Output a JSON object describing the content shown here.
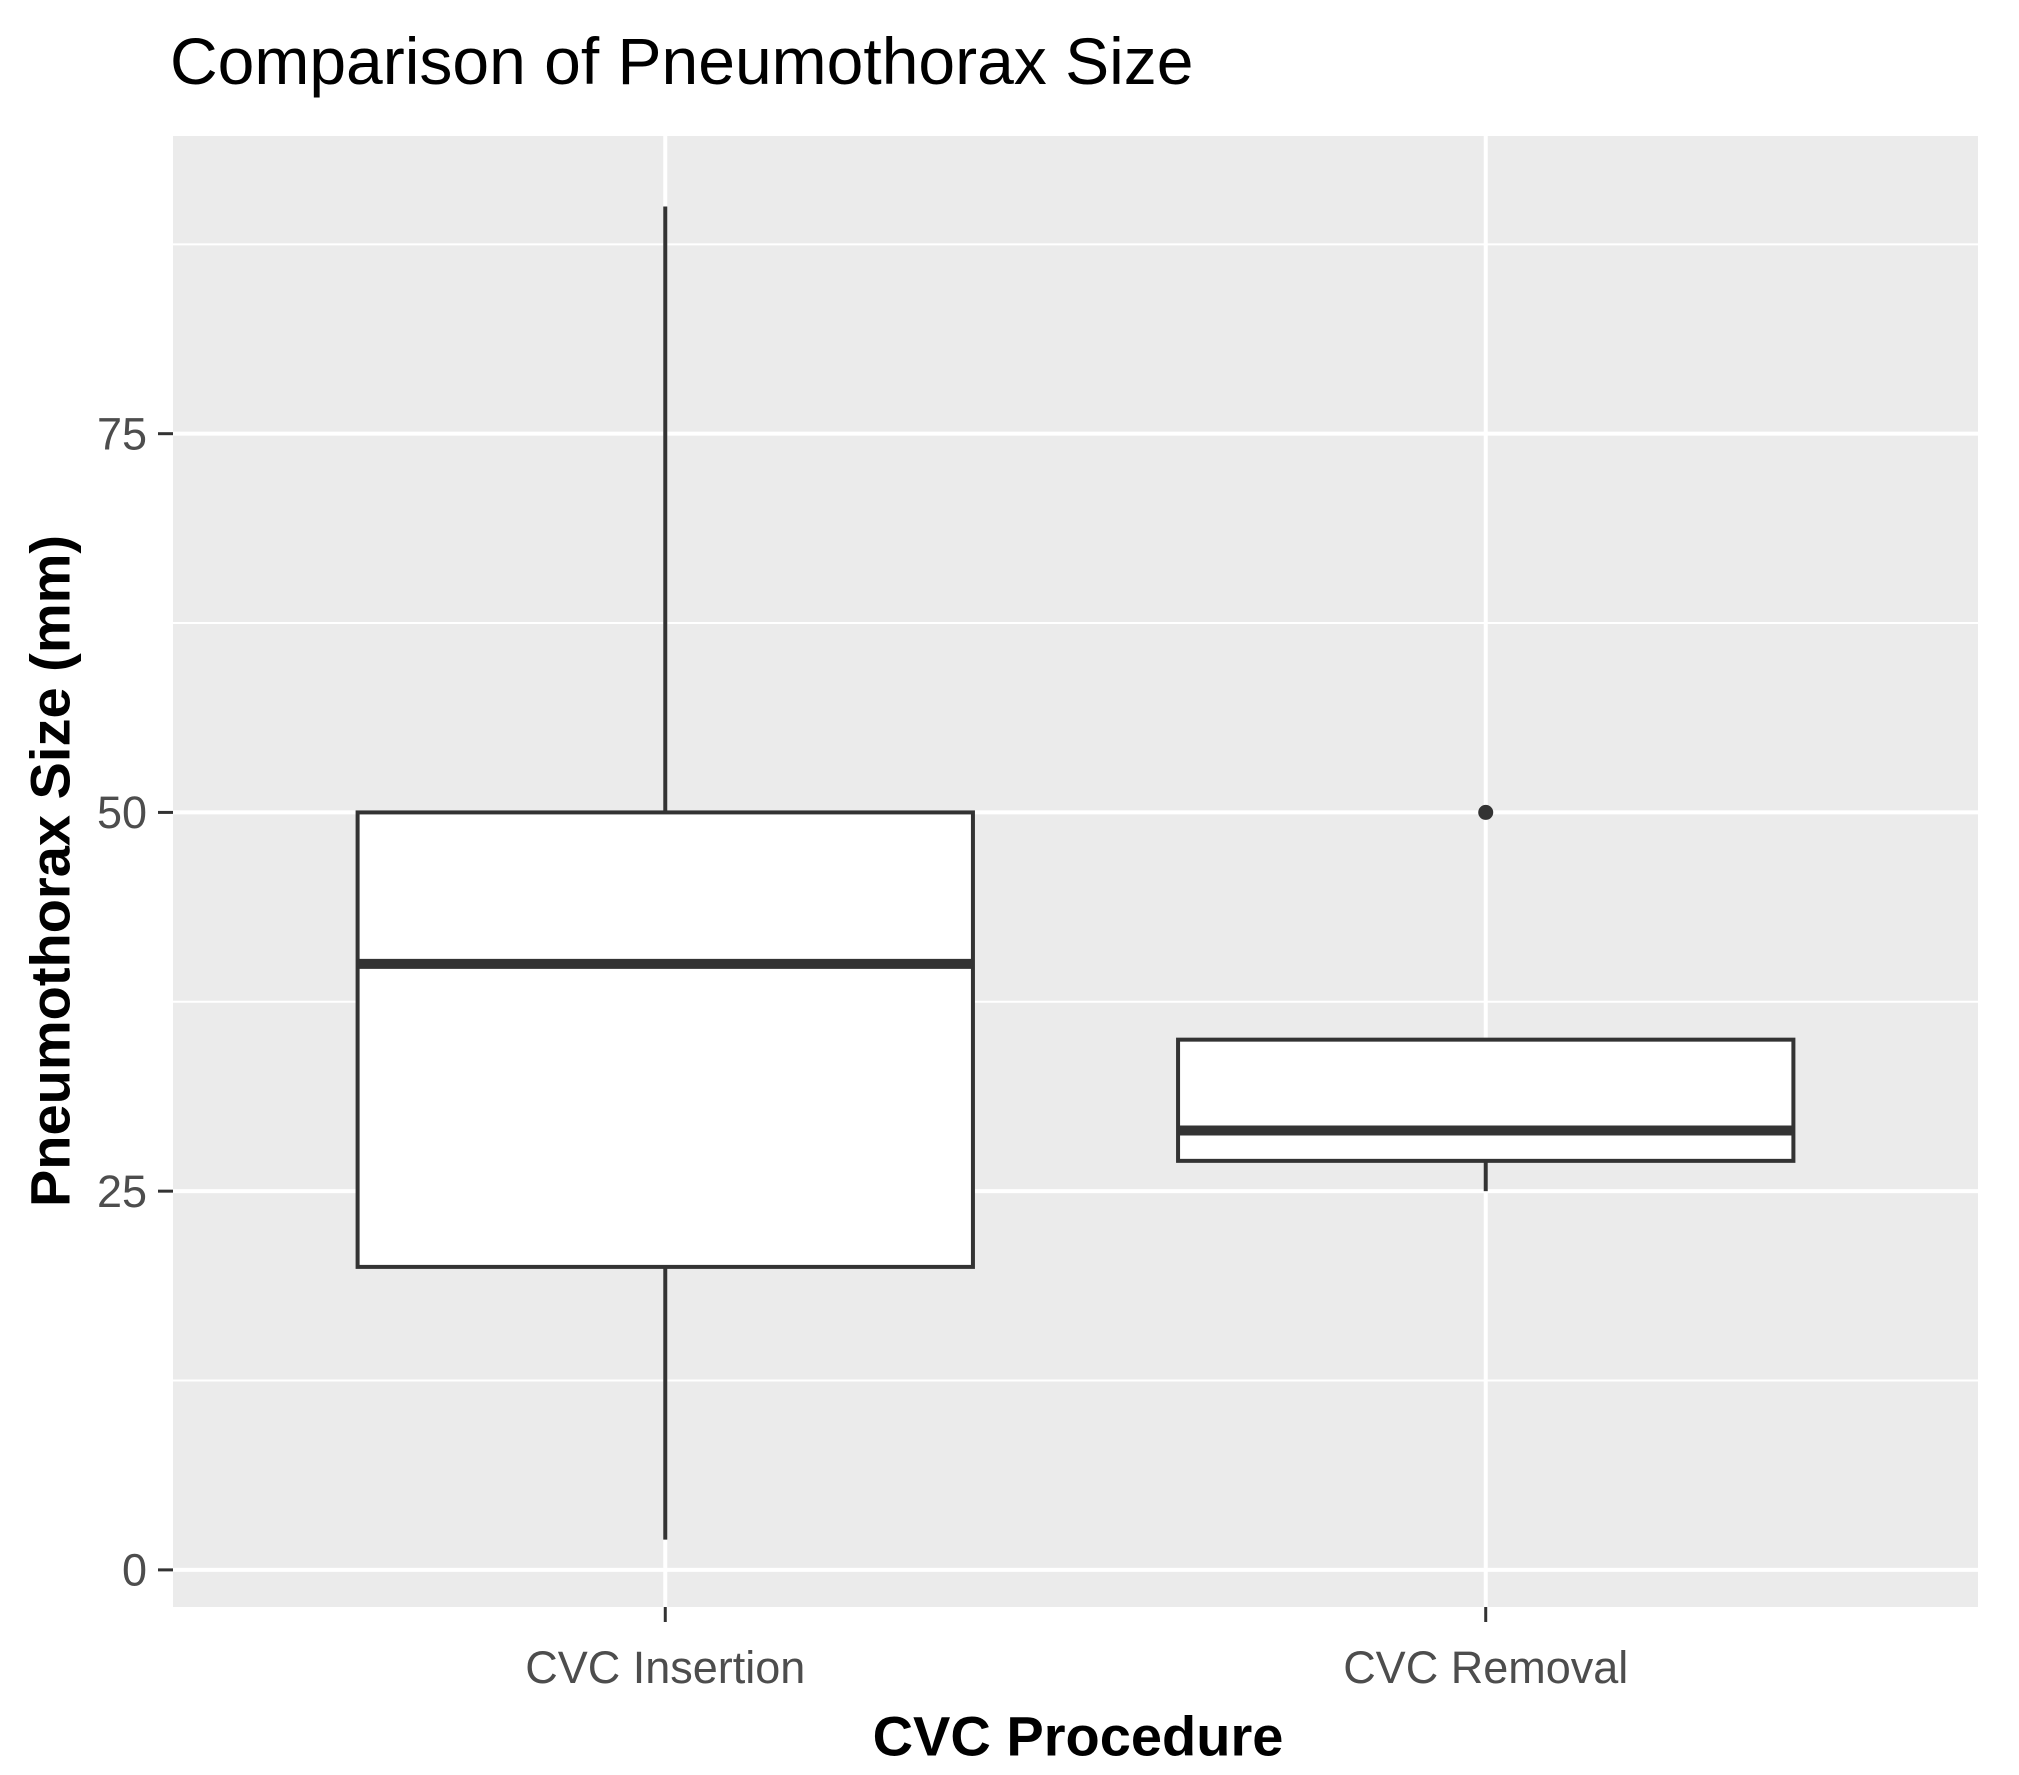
{
  "title": "Comparison of Pneumothorax Size",
  "chart_data": {
    "type": "boxplot",
    "title": "Comparison of Pneumothorax Size",
    "xlabel": "CVC Procedure",
    "ylabel": "Pneumothorax Size (mm)",
    "categories": [
      "CVC Insertion",
      "CVC Removal"
    ],
    "series": [
      {
        "name": "CVC Insertion",
        "whisker_low": 2,
        "q1": 20,
        "median": 40,
        "q3": 50,
        "whisker_high": 90,
        "outliers": []
      },
      {
        "name": "CVC Removal",
        "whisker_low": 25,
        "q1": 27,
        "median": 29,
        "q3": 35,
        "whisker_high": 35,
        "outliers": [
          50
        ]
      }
    ],
    "ylim": [
      -2.45,
      94.65
    ],
    "yticks_major": [
      0,
      25,
      50,
      75
    ],
    "yticks_minor": [
      12.5,
      37.5,
      62.5,
      87.5
    ],
    "grid": true,
    "legend": false,
    "panel_bg": "#EBEBEB",
    "grid_color": "#FFFFFF",
    "box_fill": "#FFFFFF",
    "box_stroke": "#333333",
    "tick_color": "#333333",
    "tick_label_color": "#4D4D4D",
    "text_color": "#000000"
  }
}
